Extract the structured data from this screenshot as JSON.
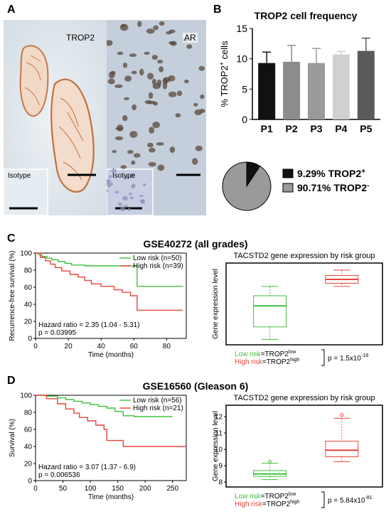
{
  "panels": {
    "A": "A",
    "B": "B",
    "C": "C",
    "D": "D"
  },
  "micrographs": {
    "trop2_label": "TROP2",
    "ar_label": "AR",
    "isotype_label_1": "Isotype",
    "isotype_label_2": "Isotype"
  },
  "panel_b": {
    "bar_chart": {
      "type": "bar",
      "title": "TROP2 cell frequency",
      "ylabel_prefix": "% TROP2",
      "ylabel_sup": "+",
      "ylabel_suffix": " cells",
      "categories": [
        "P1",
        "P2",
        "P3",
        "P4",
        "P5"
      ],
      "values": [
        9.3,
        9.5,
        9.3,
        10.7,
        11.3
      ],
      "errors": [
        1.8,
        2.7,
        2.4,
        0.5,
        2.1
      ],
      "ylim": [
        0,
        15
      ],
      "yticks": [
        "0",
        "5",
        "10",
        "15"
      ],
      "colors": [
        "#111111",
        "#8c8c8c",
        "#9a9a9a",
        "#d0d0d0",
        "#5a5a5a"
      ]
    },
    "pie": {
      "type": "pie",
      "values": [
        9.29,
        90.71
      ],
      "colors": [
        "#111111",
        "#9a9a9a"
      ],
      "legend": [
        {
          "text": "9.29% TROP2",
          "sup": "+"
        },
        {
          "text": "90.71% TROP2",
          "sup": "-"
        }
      ]
    }
  },
  "panel_c": {
    "title": "GSE40272 (all grades)",
    "km": {
      "type": "line",
      "ylabel": "Recurrence-free survival (%)",
      "xlabel": "Time (months)",
      "xticks": [
        "0",
        "20",
        "40",
        "60",
        "80"
      ],
      "yticks": [
        "0",
        "20",
        "40",
        "60",
        "80",
        "100"
      ],
      "xlim": [
        0,
        92
      ],
      "ylim": [
        0,
        100
      ],
      "series": [
        {
          "name": "Low risk (n=50)",
          "color": "#3fbf3f",
          "x": [
            0,
            2,
            4,
            7,
            10,
            14,
            18,
            22,
            30,
            62,
            62,
            90
          ],
          "y": [
            100,
            98,
            96,
            94,
            92,
            90,
            88,
            86,
            85,
            85,
            61,
            61
          ]
        },
        {
          "name": "High risk (n=39)",
          "color": "#e8453a",
          "x": [
            0,
            3,
            6,
            9,
            12,
            16,
            21,
            26,
            30,
            34,
            40,
            48,
            53,
            58,
            62,
            62,
            90
          ],
          "y": [
            100,
            95,
            91,
            87,
            83,
            79,
            75,
            72,
            68,
            64,
            61,
            57,
            54,
            50,
            48,
            33,
            33
          ]
        }
      ],
      "annotation_1": "Hazard ratio = 2.35 (1.04 - 5.31)",
      "annotation_2": "p = 0.03995"
    },
    "box": {
      "type": "box",
      "title": "TACSTD2 gene expression by risk group",
      "ylabel": "Gene expression level",
      "groups": [
        {
          "name": "Low risk",
          "color": "#3fbf3f",
          "min": -4.3,
          "q1": -2.7,
          "median": 0.0,
          "q3": 1.3,
          "max": 2.5
        },
        {
          "name": "High risk",
          "color": "#e8453a",
          "min": 2.5,
          "q1": 2.9,
          "median": 3.4,
          "q3": 3.9,
          "max": 4.6
        }
      ],
      "ylim": [
        -5,
        5.5
      ],
      "legend_low": "Low risk",
      "legend_low_eq": "=TROP2",
      "legend_low_sup": "low",
      "legend_high": "High risk",
      "legend_high_eq": "=TROP2",
      "legend_high_sup": "high",
      "pvalue_text": "p = 1.5x10",
      "pvalue_exp": "-18"
    }
  },
  "panel_d": {
    "title": "GSE16560 (Gleason 6)",
    "km": {
      "type": "line",
      "ylabel": "Survival (%)",
      "xlabel": "Time (months)",
      "xticks": [
        "0",
        "50",
        "100",
        "150",
        "200",
        "250"
      ],
      "yticks": [
        "0",
        "20",
        "40",
        "60",
        "80",
        "100"
      ],
      "xlim": [
        0,
        275
      ],
      "ylim": [
        0,
        100
      ],
      "series": [
        {
          "name": "Low risk (n=56)",
          "color": "#3fbf3f",
          "x": [
            0,
            20,
            40,
            55,
            70,
            85,
            100,
            115,
            130,
            145,
            160,
            180,
            250
          ],
          "y": [
            100,
            99,
            97,
            95,
            93,
            91,
            89,
            87,
            85,
            81,
            76,
            75,
            75
          ]
        },
        {
          "name": "High risk (n=21)",
          "color": "#e8453a",
          "x": [
            0,
            20,
            40,
            55,
            70,
            80,
            95,
            110,
            125,
            130,
            160,
            160,
            275
          ],
          "y": [
            100,
            96,
            90,
            84,
            79,
            74,
            70,
            65,
            60,
            47,
            42,
            40,
            40
          ]
        }
      ],
      "annotation_1": "Hazard ratio = 3.07 (1.37 - 6.9)",
      "annotation_2": "p = 0.006536"
    },
    "box": {
      "type": "box",
      "title": "TACSTD2 gene expression by risk group",
      "ylabel": "Gene expression level",
      "yticks": [
        "8",
        "9",
        "10",
        "11",
        "12"
      ],
      "groups": [
        {
          "name": "Low risk",
          "color": "#3fbf3f",
          "min": 8.15,
          "q1": 8.35,
          "median": 8.5,
          "q3": 8.7,
          "max": 9.15,
          "outlier": 9.25
        },
        {
          "name": "High risk",
          "color": "#e8453a",
          "min": 9.25,
          "q1": 9.55,
          "median": 9.95,
          "q3": 10.5,
          "max": 11.9,
          "outlier": 12.1
        }
      ],
      "ylim": [
        7.7,
        12.7
      ],
      "legend_low": "Low risk",
      "legend_low_eq": "=TROP2",
      "legend_low_sup": "low",
      "legend_high": "High risk",
      "legend_high_eq": "=TROP2",
      "legend_high_sup": "high",
      "pvalue_text": "p = 5.84x10",
      "pvalue_exp": "-81"
    }
  }
}
